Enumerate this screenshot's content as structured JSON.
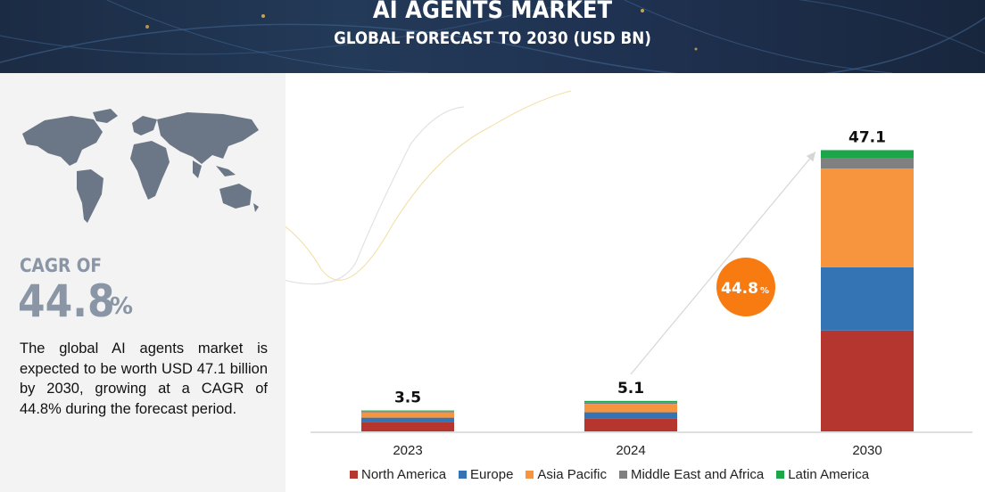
{
  "header": {
    "title": "AI AGENTS MARKET",
    "subtitle": "GLOBAL FORECAST TO 2030 (USD BN)"
  },
  "left_panel": {
    "map_icon": "world-map-icon",
    "cagr_label": "CAGR OF",
    "cagr_value": "44.8",
    "cagr_unit": "%",
    "description": "The global AI agents market is expected to be worth USD 47.1 billion by 2030, growing at a CAGR of 44.8% during the forecast period."
  },
  "growth_badge": {
    "value": "44.8",
    "unit": "%"
  },
  "colors": {
    "north_america": "#b5352f",
    "europe": "#3474b4",
    "asia_pacific": "#f7953e",
    "middle_east_africa": "#808080",
    "latin_america": "#1ca64a",
    "badge": "#f77b10",
    "header": "#1f3150"
  },
  "chart_data": {
    "type": "bar",
    "stacked": true,
    "categories": [
      "2023",
      "2024",
      "2030"
    ],
    "totals": [
      "3.5",
      "5.1",
      "47.1"
    ],
    "ylim": [
      0,
      50
    ],
    "grid": false,
    "legend_position": "bottom",
    "series": [
      {
        "name": "North America",
        "color": "#b5352f",
        "values": [
          1.5,
          2.1,
          16.9
        ]
      },
      {
        "name": "Europe",
        "color": "#3474b4",
        "values": [
          0.8,
          1.1,
          10.6
        ]
      },
      {
        "name": "Asia Pacific",
        "color": "#f7953e",
        "values": [
          0.9,
          1.4,
          16.5
        ]
      },
      {
        "name": "Middle East and Africa",
        "color": "#808080",
        "values": [
          0.2,
          0.3,
          1.7
        ]
      },
      {
        "name": "Latin America",
        "color": "#1ca64a",
        "values": [
          0.1,
          0.2,
          1.4
        ]
      }
    ]
  }
}
